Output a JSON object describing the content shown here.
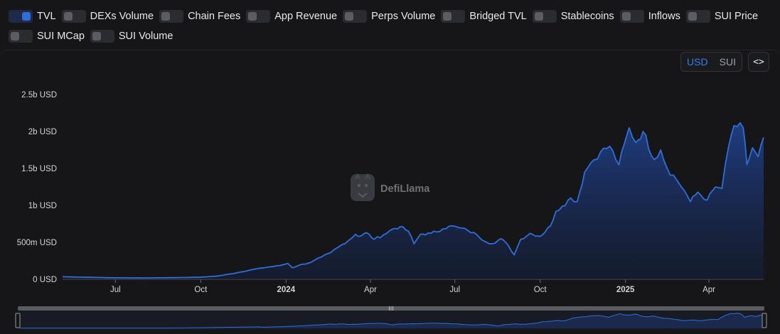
{
  "toggles": [
    {
      "label": "TVL",
      "on": true
    },
    {
      "label": "DEXs Volume",
      "on": false
    },
    {
      "label": "Chain Fees",
      "on": false
    },
    {
      "label": "App Revenue",
      "on": false
    },
    {
      "label": "Perps Volume",
      "on": false
    },
    {
      "label": "Bridged TVL",
      "on": false
    },
    {
      "label": "Stablecoins",
      "on": false
    },
    {
      "label": "Inflows",
      "on": false
    },
    {
      "label": "SUI Price",
      "on": false
    },
    {
      "label": "SUI MCap",
      "on": false
    },
    {
      "label": "SUI Volume",
      "on": false
    }
  ],
  "unit_toggle": {
    "usd": "USD",
    "sui": "SUI",
    "selected": "USD"
  },
  "embed_button": {
    "label": "<>"
  },
  "watermark": {
    "text": "DefiLlama"
  },
  "colors": {
    "series": "#2f6ed9",
    "accent": "#3b7bea",
    "background": "#161619"
  },
  "chart_data": {
    "type": "area",
    "series": [
      {
        "name": "TVL",
        "unit": "USD"
      }
    ],
    "y_ticks": [
      "0 USD",
      "500m USD",
      "1b USD",
      "1.5b USD",
      "2b USD",
      "2.5b USD"
    ],
    "ylim": [
      0,
      2500000000
    ],
    "x_ticks": [
      {
        "label": "Jul",
        "date": "2023-07-01",
        "bold": false
      },
      {
        "label": "Oct",
        "date": "2023-10-01",
        "bold": false
      },
      {
        "label": "2024",
        "date": "2024-01-01",
        "bold": true
      },
      {
        "label": "Apr",
        "date": "2024-04-01",
        "bold": false
      },
      {
        "label": "Jul",
        "date": "2024-07-01",
        "bold": false
      },
      {
        "label": "Oct",
        "date": "2024-10-01",
        "bold": false
      },
      {
        "label": "2025",
        "date": "2025-01-01",
        "bold": true
      },
      {
        "label": "Apr",
        "date": "2025-04-01",
        "bold": false
      }
    ],
    "xlim": [
      "2023-05-05",
      "2025-05-30"
    ],
    "grid": false,
    "points": [
      [
        "2023-05-05",
        35000000
      ],
      [
        "2023-05-20",
        30000000
      ],
      [
        "2023-06-10",
        25000000
      ],
      [
        "2023-07-01",
        20000000
      ],
      [
        "2023-08-01",
        18000000
      ],
      [
        "2023-09-01",
        22000000
      ],
      [
        "2023-10-01",
        28000000
      ],
      [
        "2023-10-20",
        45000000
      ],
      [
        "2023-11-10",
        90000000
      ],
      [
        "2023-11-25",
        130000000
      ],
      [
        "2023-12-10",
        160000000
      ],
      [
        "2023-12-25",
        185000000
      ],
      [
        "2024-01-03",
        215000000
      ],
      [
        "2024-01-08",
        155000000
      ],
      [
        "2024-01-15",
        190000000
      ],
      [
        "2024-01-28",
        230000000
      ],
      [
        "2024-02-08",
        300000000
      ],
      [
        "2024-02-18",
        360000000
      ],
      [
        "2024-02-28",
        450000000
      ],
      [
        "2024-03-10",
        540000000
      ],
      [
        "2024-03-16",
        610000000
      ],
      [
        "2024-03-20",
        580000000
      ],
      [
        "2024-03-28",
        630000000
      ],
      [
        "2024-04-05",
        540000000
      ],
      [
        "2024-04-15",
        600000000
      ],
      [
        "2024-04-25",
        680000000
      ],
      [
        "2024-05-03",
        710000000
      ],
      [
        "2024-05-12",
        650000000
      ],
      [
        "2024-05-18",
        480000000
      ],
      [
        "2024-05-25",
        610000000
      ],
      [
        "2024-06-05",
        620000000
      ],
      [
        "2024-06-18",
        680000000
      ],
      [
        "2024-06-25",
        720000000
      ],
      [
        "2024-07-05",
        700000000
      ],
      [
        "2024-07-15",
        660000000
      ],
      [
        "2024-07-25",
        600000000
      ],
      [
        "2024-08-03",
        510000000
      ],
      [
        "2024-08-10",
        480000000
      ],
      [
        "2024-08-20",
        550000000
      ],
      [
        "2024-08-28",
        450000000
      ],
      [
        "2024-09-03",
        330000000
      ],
      [
        "2024-09-10",
        540000000
      ],
      [
        "2024-09-20",
        620000000
      ],
      [
        "2024-10-01",
        580000000
      ],
      [
        "2024-10-12",
        720000000
      ],
      [
        "2024-10-18",
        920000000
      ],
      [
        "2024-10-25",
        990000000
      ],
      [
        "2024-11-03",
        1100000000
      ],
      [
        "2024-11-10",
        1050000000
      ],
      [
        "2024-11-18",
        1450000000
      ],
      [
        "2024-11-25",
        1580000000
      ],
      [
        "2024-12-05",
        1720000000
      ],
      [
        "2024-12-15",
        1800000000
      ],
      [
        "2024-12-25",
        1550000000
      ],
      [
        "2025-01-05",
        2050000000
      ],
      [
        "2025-01-12",
        1850000000
      ],
      [
        "2025-01-20",
        2000000000
      ],
      [
        "2025-02-01",
        1620000000
      ],
      [
        "2025-02-08",
        1750000000
      ],
      [
        "2025-02-15",
        1500000000
      ],
      [
        "2025-02-25",
        1350000000
      ],
      [
        "2025-03-05",
        1210000000
      ],
      [
        "2025-03-12",
        1050000000
      ],
      [
        "2025-03-20",
        1180000000
      ],
      [
        "2025-03-30",
        1070000000
      ],
      [
        "2025-04-08",
        1250000000
      ],
      [
        "2025-04-15",
        1230000000
      ],
      [
        "2025-04-22",
        1780000000
      ],
      [
        "2025-04-28",
        2080000000
      ],
      [
        "2025-05-08",
        2050000000
      ],
      [
        "2025-05-12",
        1550000000
      ],
      [
        "2025-05-18",
        1780000000
      ],
      [
        "2025-05-24",
        1660000000
      ],
      [
        "2025-05-30",
        1920000000
      ]
    ]
  }
}
